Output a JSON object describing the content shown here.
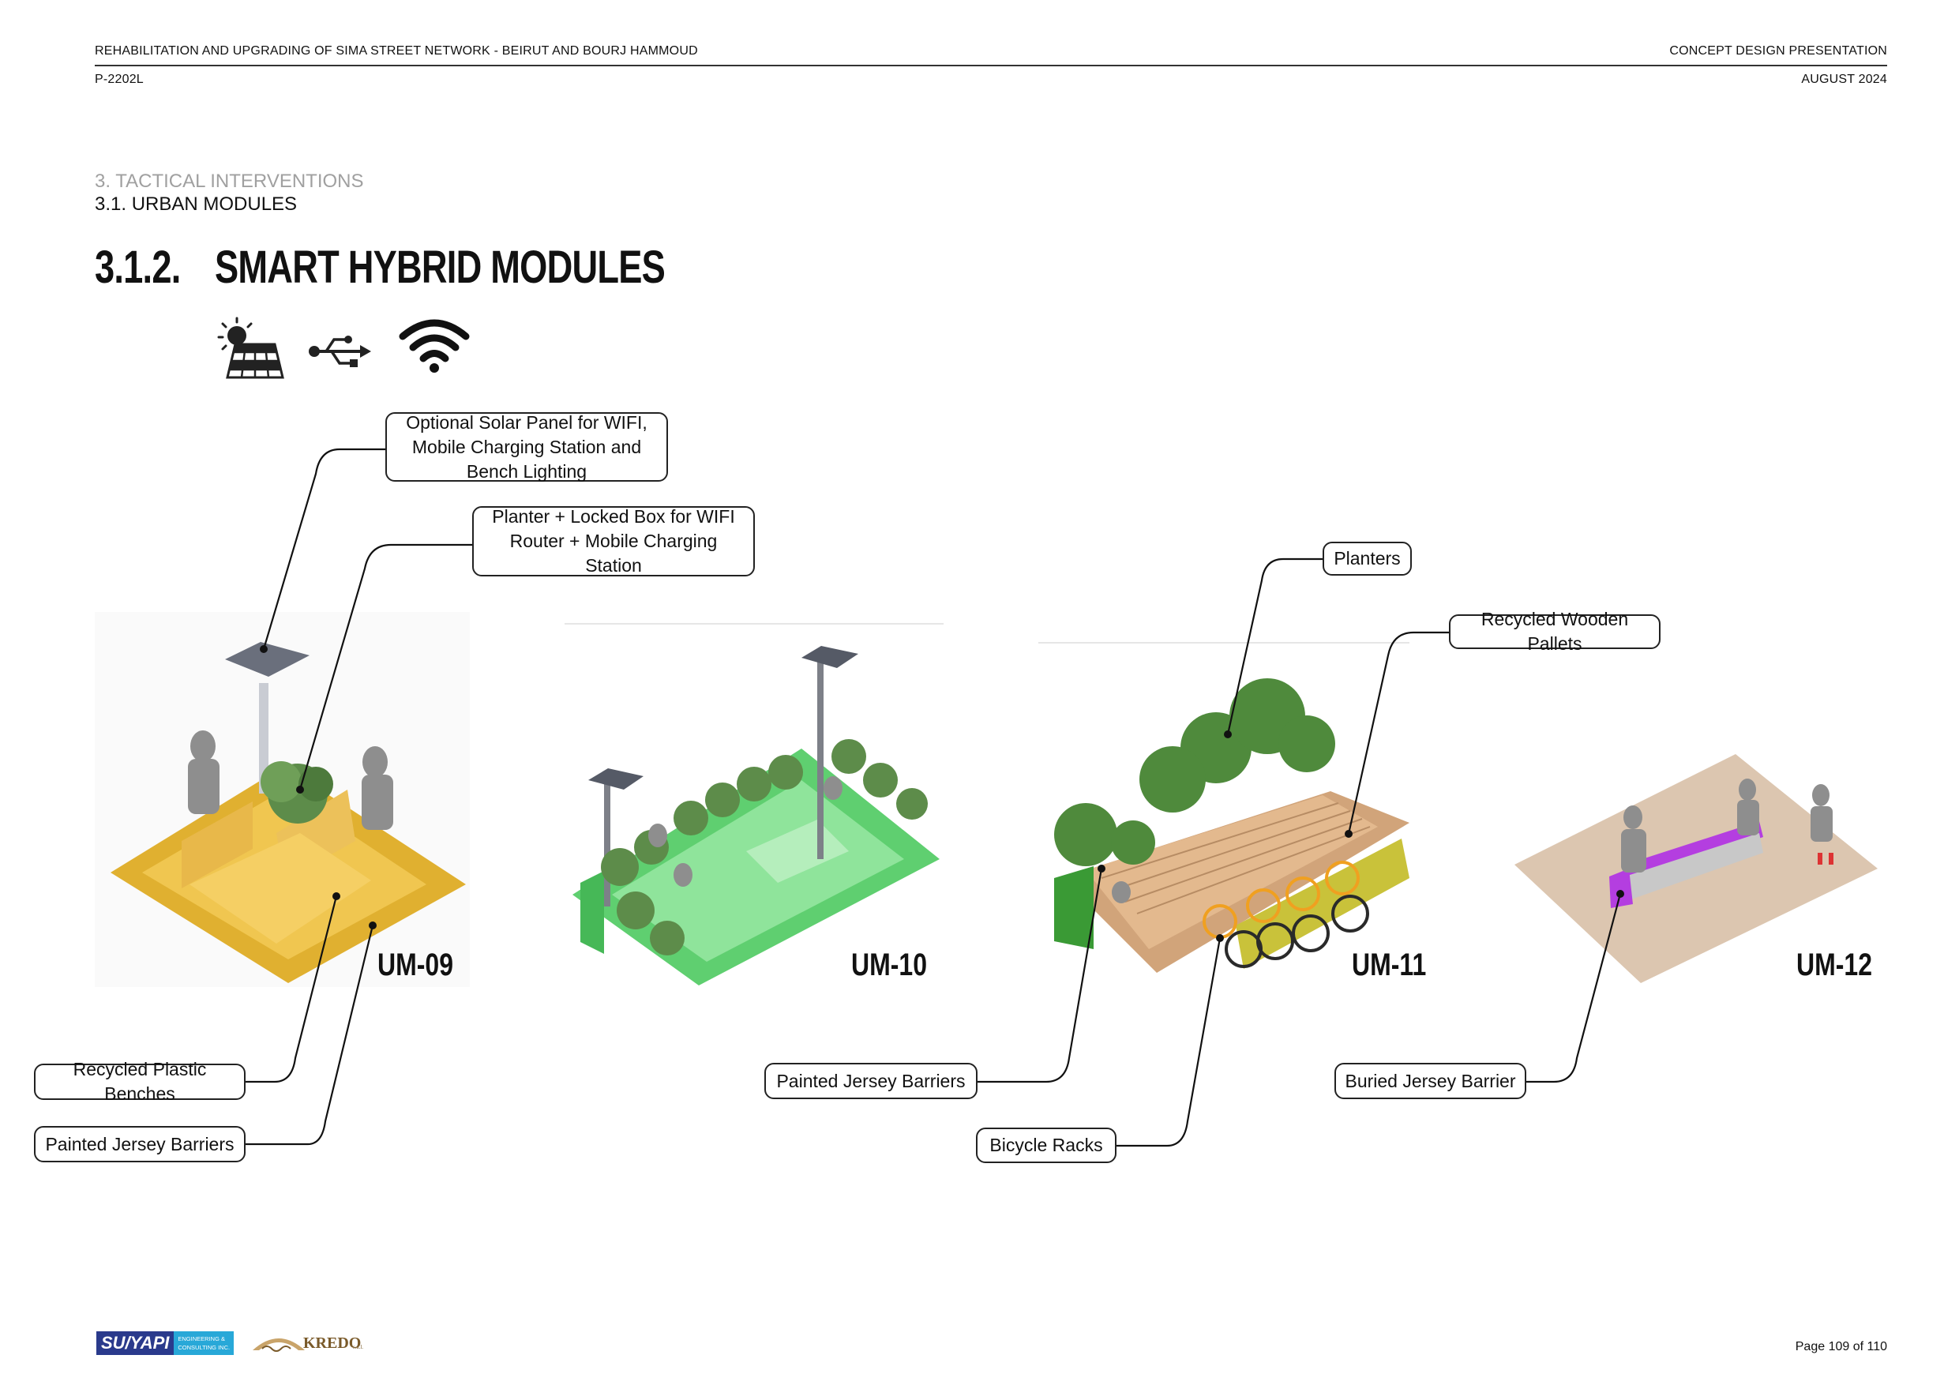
{
  "header": {
    "project_title": "REHABILITATION AND UPGRADING OF SIMA STREET NETWORK - BEIRUT AND BOURJ HAMMOUD",
    "presentation": "CONCEPT DESIGN PRESENTATION",
    "project_code": "P-2202L",
    "date": "AUGUST 2024"
  },
  "breadcrumb": {
    "chapter": "3. TACTICAL INTERVENTIONS",
    "subsection": "3.1. URBAN MODULES"
  },
  "heading": {
    "number": "3.1.2.",
    "title": "SMART HYBRID MODULES"
  },
  "feature_icons": [
    "solar-panel-icon",
    "usb-icon",
    "wifi-icon"
  ],
  "modules": [
    {
      "code": "UM-09",
      "color": "#e8b84a"
    },
    {
      "code": "UM-10",
      "color": "#7ed98a"
    },
    {
      "code": "UM-11",
      "color": "#c9c23a"
    },
    {
      "code": "UM-12",
      "color": "#b43ee0"
    }
  ],
  "callouts": {
    "solar": "Optional Solar Panel for WIFI, Mobile Charging Station and Bench Lighting",
    "planter_box": "Planter + Locked Box for WIFI Router + Mobile Charging Station",
    "planters": "Planters",
    "pallets": "Recycled Wooden Pallets",
    "plastic_benches": "Recycled Plastic Benches",
    "jersey_um09": "Painted Jersey Barriers",
    "jersey_um11": "Painted Jersey Barriers",
    "bicycle_racks": "Bicycle Racks",
    "buried_jersey": "Buried Jersey Barrier"
  },
  "footer": {
    "logo1_main": "SU/YAPI",
    "logo1_sub1": "ENGINEERING &",
    "logo1_sub2": "CONSULTING INC.",
    "logo2": "KREDO",
    "logo2_suffix": "s.a.l.",
    "page": "Page 109 of 110"
  }
}
